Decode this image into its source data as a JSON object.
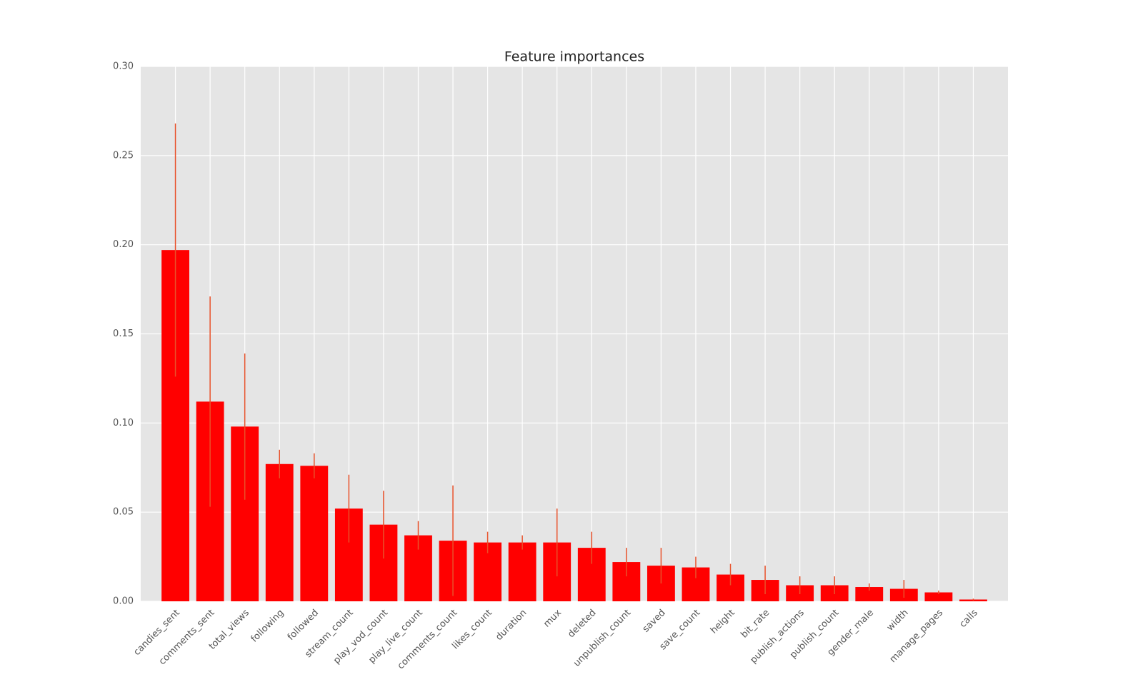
{
  "chart_data": {
    "type": "bar",
    "title": "Feature importances",
    "categories": [
      "candies_sent",
      "comments_sent",
      "total_views",
      "following",
      "followed",
      "stream_count",
      "play_vod_count",
      "play_live_count",
      "comments_count",
      "likes_count",
      "duration",
      "mux",
      "deleted",
      "unpublish_count",
      "saved",
      "save_count",
      "height",
      "bit_rate",
      "publish_actions",
      "publish_count",
      "gender_male",
      "width",
      "manage_pages",
      "calls"
    ],
    "values": [
      0.197,
      0.112,
      0.098,
      0.077,
      0.076,
      0.052,
      0.043,
      0.037,
      0.034,
      0.033,
      0.033,
      0.033,
      0.03,
      0.022,
      0.02,
      0.019,
      0.015,
      0.012,
      0.009,
      0.009,
      0.008,
      0.007,
      0.005,
      0.001
    ],
    "errors": [
      0.071,
      0.059,
      0.041,
      0.008,
      0.007,
      0.019,
      0.019,
      0.008,
      0.031,
      0.006,
      0.004,
      0.019,
      0.009,
      0.008,
      0.01,
      0.006,
      0.006,
      0.008,
      0.005,
      0.005,
      0.002,
      0.005,
      0.001,
      0.0005
    ],
    "color": "#ff0000",
    "error_color": "#e8522b",
    "ylim": [
      0,
      0.3
    ],
    "yticks": [
      {
        "value": 0,
        "label": "0.00"
      },
      {
        "value": 0.05,
        "label": "0.05"
      },
      {
        "value": 0.1,
        "label": "0.10"
      },
      {
        "value": 0.15,
        "label": "0.15"
      },
      {
        "value": 0.2,
        "label": "0.20"
      },
      {
        "value": 0.25,
        "label": "0.25"
      },
      {
        "value": 0.3,
        "label": "0.30"
      }
    ],
    "grid": true
  }
}
